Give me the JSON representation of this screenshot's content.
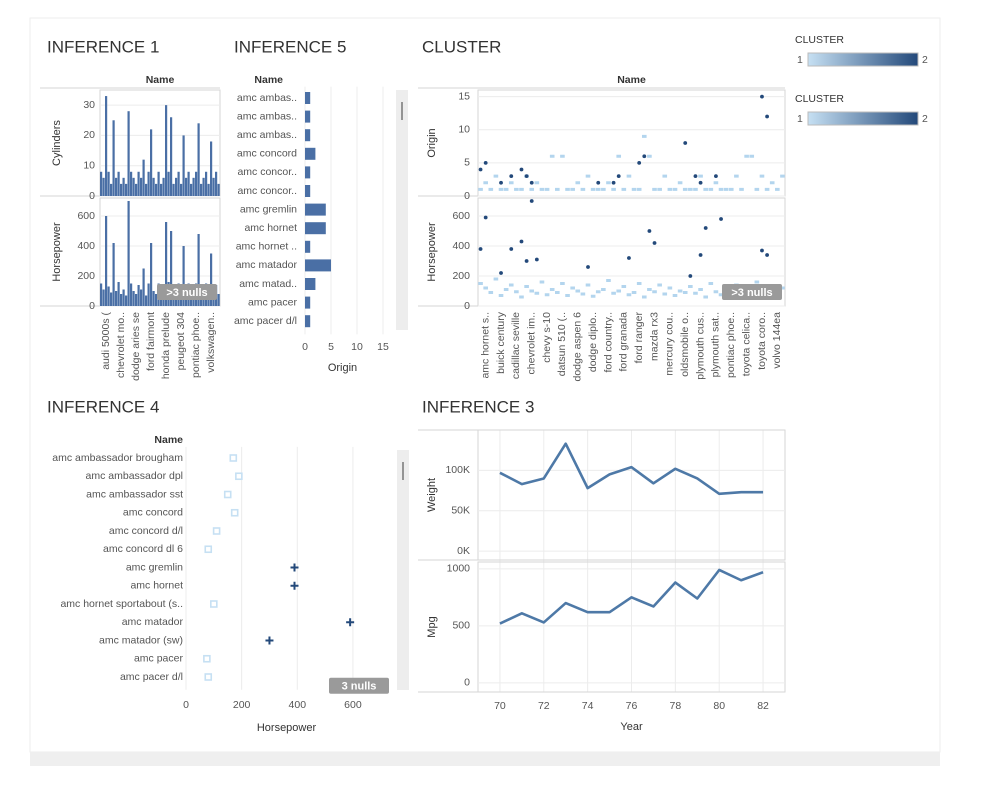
{
  "legends": [
    {
      "title": "CLUSTER",
      "min": 1,
      "max": 2,
      "colors": [
        "#c6e0f3",
        "#23497a"
      ]
    },
    {
      "title": "CLUSTER",
      "min": 1,
      "max": 2,
      "colors": [
        "#c6e0f3",
        "#23497a"
      ]
    }
  ],
  "chart_data": [
    {
      "type": "bar",
      "title": "INFERENCE 1",
      "column_header": "Name",
      "color": "#4a6fa5",
      "categories": [
        null,
        null,
        "audi 5000s (",
        null,
        null,
        null,
        null,
        null,
        "chevrolet mo..",
        null,
        null,
        null,
        null,
        null,
        "dodge aries se",
        null,
        null,
        null,
        null,
        null,
        "ford fairmont",
        null,
        null,
        null,
        null,
        null,
        "honda prelude",
        null,
        null,
        null,
        null,
        null,
        "peugeot 304",
        null,
        null,
        null,
        null,
        null,
        "pontiac phoe..",
        null,
        null,
        null,
        null,
        null,
        "volkswagen..",
        null,
        null,
        null
      ],
      "panes": [
        {
          "label": "Cylinders",
          "ylim": [
            0,
            35
          ],
          "yticks": [
            0,
            10,
            20,
            30
          ],
          "values": [
            8,
            6,
            33,
            8,
            4,
            25,
            6,
            8,
            4,
            6,
            4,
            28,
            8,
            6,
            4,
            8,
            6,
            12,
            4,
            8,
            22,
            6,
            4,
            8,
            4,
            6,
            30,
            8,
            26,
            4,
            6,
            8,
            4,
            20,
            6,
            8,
            4,
            6,
            8,
            24,
            4,
            6,
            8,
            4,
            18,
            6,
            8,
            4
          ]
        },
        {
          "label": "Horsepower",
          "ylim": [
            0,
            720
          ],
          "yticks": [
            0,
            200,
            400,
            600
          ],
          "annotation": ">3 nulls",
          "values": [
            150,
            110,
            600,
            130,
            90,
            420,
            100,
            160,
            80,
            110,
            70,
            700,
            150,
            100,
            80,
            140,
            110,
            250,
            70,
            150,
            420,
            100,
            80,
            150,
            70,
            110,
            560,
            160,
            500,
            80,
            110,
            150,
            70,
            400,
            100,
            150,
            80,
            100,
            150,
            480,
            80,
            100,
            150,
            70,
            350,
            100,
            140,
            80
          ]
        }
      ]
    },
    {
      "type": "hbar",
      "title": "INFERENCE 5",
      "column_header": "Name",
      "color": "#4a6fa5",
      "categories": [
        "amc ambas..",
        "amc ambas..",
        "amc ambas..",
        "amc concord",
        "amc concor..",
        "amc concor..",
        "amc gremlin",
        "amc hornet",
        "amc hornet ..",
        "amc matador",
        "amc matad..",
        "amc pacer",
        "amc pacer d/l"
      ],
      "values": [
        1,
        1,
        1,
        2,
        1,
        1,
        4,
        4,
        1,
        5,
        2,
        1,
        1
      ],
      "xlabel": "Origin",
      "xlim": [
        0,
        17.5
      ],
      "xticks": [
        0,
        5,
        10,
        15
      ]
    },
    {
      "type": "strip",
      "title": "CLUSTER",
      "column_header": "Name",
      "categories": [
        null,
        "amc hornet s..",
        null,
        null,
        "buick century",
        null,
        null,
        "cadillac seville",
        null,
        null,
        "chevrolet im..",
        null,
        null,
        "chevy s-10",
        null,
        null,
        "datsun 510 (..",
        null,
        null,
        "dodge aspen 6",
        null,
        null,
        "dodge diplo..",
        null,
        null,
        "ford country..",
        null,
        null,
        "ford granada",
        null,
        null,
        "ford ranger",
        null,
        null,
        "mazda rx3",
        null,
        null,
        "mercury cou..",
        null,
        null,
        "oldsmobile o..",
        null,
        null,
        "plymouth cus..",
        null,
        null,
        "plymouth sat..",
        null,
        null,
        "pontiac phoe..",
        null,
        null,
        "toyota celica..",
        null,
        null,
        "toyota coro..",
        null,
        null,
        "volvo 144ea",
        null
      ],
      "panes": [
        {
          "label": "Origin",
          "ylim": [
            0,
            16
          ],
          "yticks": [
            0,
            5,
            10,
            15
          ],
          "series": [
            {
              "cluster": 1,
              "color": "#b3d5ee",
              "values": [
                1,
                2,
                1,
                3,
                1,
                1,
                2,
                1,
                1,
                3,
                1,
                2,
                1,
                1,
                6,
                1,
                6,
                1,
                1,
                2,
                1,
                3,
                1,
                1,
                1,
                2,
                1,
                6,
                1,
                3,
                1,
                1,
                9,
                6,
                1,
                1,
                3,
                1,
                1,
                2,
                1,
                1,
                1,
                3,
                1,
                1,
                2,
                1,
                1,
                1,
                3,
                1,
                6,
                6,
                1,
                3,
                1,
                2,
                1,
                3
              ]
            },
            {
              "cluster": 2,
              "color": "#23497a",
              "values": [
                4,
                5,
                null,
                null,
                2,
                null,
                3,
                null,
                4,
                3,
                2,
                null,
                null,
                null,
                null,
                null,
                null,
                null,
                null,
                null,
                null,
                null,
                null,
                2,
                null,
                null,
                2,
                3,
                null,
                null,
                null,
                5,
                6,
                null,
                null,
                null,
                null,
                null,
                null,
                null,
                8,
                null,
                3,
                2,
                null,
                null,
                3,
                null,
                null,
                null,
                null,
                null,
                null,
                null,
                null,
                15,
                12,
                null,
                null,
                null
              ]
            }
          ]
        },
        {
          "label": "Horsepower",
          "ylim": [
            0,
            720
          ],
          "yticks": [
            0,
            200,
            400,
            600
          ],
          "annotation": ">3 nulls",
          "series": [
            {
              "cluster": 1,
              "color": "#b3d5ee",
              "values": [
                150,
                120,
                90,
                180,
                70,
                110,
                140,
                95,
                60,
                130,
                100,
                85,
                160,
                75,
                110,
                90,
                150,
                70,
                120,
                100,
                80,
                140,
                65,
                95,
                110,
                170,
                85,
                100,
                130,
                75,
                90,
                150,
                60,
                110,
                95,
                140,
                80,
                120,
                70,
                100,
                90,
                130,
                85,
                110,
                60,
                150,
                95,
                75,
                120,
                100,
                140,
                80,
                110,
                90,
                160,
                70,
                130,
                100,
                85,
                120
              ]
            },
            {
              "cluster": 2,
              "color": "#23497a",
              "values": [
                380,
                590,
                null,
                null,
                220,
                null,
                380,
                null,
                430,
                300,
                700,
                310,
                null,
                null,
                null,
                null,
                null,
                null,
                null,
                null,
                null,
                260,
                null,
                null,
                null,
                null,
                null,
                null,
                null,
                320,
                null,
                null,
                null,
                500,
                420,
                null,
                null,
                null,
                null,
                null,
                null,
                200,
                null,
                340,
                520,
                null,
                null,
                580,
                null,
                null,
                null,
                null,
                null,
                null,
                null,
                370,
                340,
                null,
                null,
                null
              ]
            }
          ]
        }
      ]
    },
    {
      "type": "dot",
      "title": "INFERENCE 4",
      "column_header": "Name",
      "categories": [
        "amc ambassador brougham",
        "amc ambassador dpl",
        "amc ambassador sst",
        "amc concord",
        "amc concord d/l",
        "amc concord dl 6",
        "amc gremlin",
        "amc hornet",
        "amc hornet sportabout (s..",
        "amc matador",
        "amc matador (sw)",
        "amc pacer",
        "amc pacer d/l"
      ],
      "values": [
        170,
        190,
        150,
        175,
        110,
        80,
        390,
        390,
        100,
        590,
        300,
        75,
        80
      ],
      "clusters": [
        1,
        1,
        1,
        1,
        1,
        1,
        2,
        2,
        1,
        2,
        2,
        1,
        1
      ],
      "xlabel": "Horsepower",
      "xlim": [
        0,
        780
      ],
      "xticks": [
        0,
        200,
        400,
        600
      ],
      "annotation": "3 nulls"
    },
    {
      "type": "line",
      "title": "INFERENCE 3",
      "color": "#4e79a7",
      "xlabel": "Year",
      "x": [
        70,
        71,
        72,
        73,
        74,
        75,
        76,
        77,
        78,
        79,
        80,
        81,
        82
      ],
      "xlim": [
        69,
        83
      ],
      "xticks": [
        70,
        72,
        74,
        76,
        78,
        80,
        82
      ],
      "panes": [
        {
          "label": "Weight",
          "ylim": [
            -11000,
            150000
          ],
          "yticks": [
            {
              "value": 0,
              "label": "0K"
            },
            {
              "value": 50000,
              "label": "50K"
            },
            {
              "value": 100000,
              "label": "100K"
            }
          ],
          "values": [
            97000,
            83000,
            90000,
            133000,
            78000,
            95000,
            104000,
            84000,
            102000,
            90000,
            71000,
            73000,
            73000
          ]
        },
        {
          "label": "Mpg",
          "ylim": [
            -80,
            1060
          ],
          "yticks": [
            0,
            500,
            1000
          ],
          "values": [
            520,
            610,
            530,
            700,
            620,
            620,
            750,
            670,
            880,
            740,
            990,
            900,
            970
          ]
        }
      ]
    }
  ]
}
